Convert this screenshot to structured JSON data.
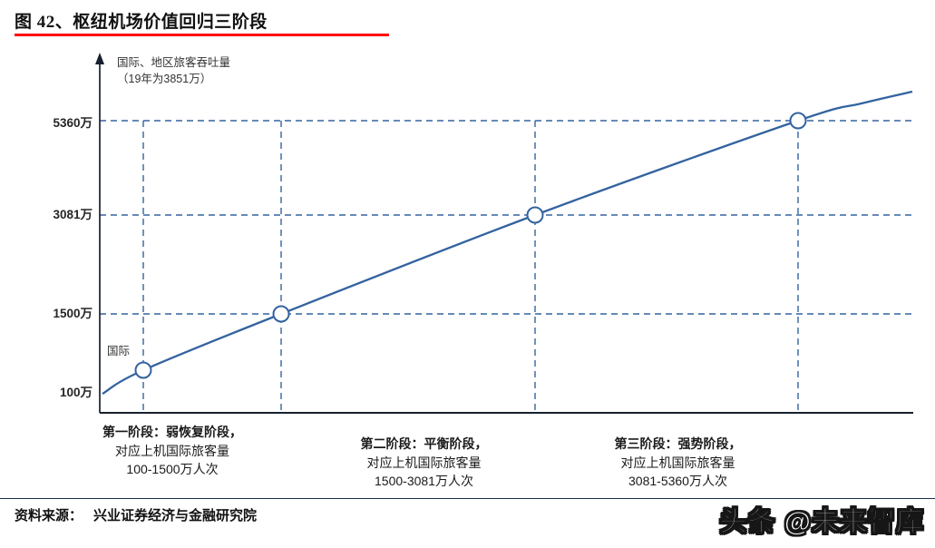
{
  "figure": {
    "title": "图 42、枢纽机场价值回归三阶段",
    "source_label": "资料来源：",
    "source_text": "兴业证券经济与金融研究院",
    "watermark": "头条 @未来智库"
  },
  "chart_data": {
    "type": "line",
    "title": "枢纽机场价值回归三阶段",
    "y_axis_title_line1": "国际、地区旅客吞吐量",
    "y_axis_title_line2": "（19年为3851万）",
    "y_unit": "万人次",
    "y_ticks": [
      {
        "label": "5360万",
        "value": 5360
      },
      {
        "label": "3081万",
        "value": 3081
      },
      {
        "label": "1500万",
        "value": 1500
      },
      {
        "label": "100万",
        "value": 100
      }
    ],
    "series": [
      {
        "name": "国际、地区旅客吞吐量",
        "annotation": "国际",
        "curve_range_approx": [
          100,
          6000
        ],
        "markers": [
          {
            "approx_value": 400,
            "label": "国际"
          },
          {
            "approx_value": 1500
          },
          {
            "approx_value": 3081
          },
          {
            "approx_value": 5360
          }
        ]
      }
    ],
    "gridlines": {
      "horizontal_dashed_values": [
        5360,
        3081,
        1500
      ],
      "vertical_dashed_at_markers": true
    },
    "line_color": "#33639f",
    "axis_color": "#17202e",
    "stages": [
      {
        "title": "第一阶段：弱恢复阶段，",
        "desc1": "对应上机国际旅客量",
        "desc2": "100-1500万人次"
      },
      {
        "title": "第二阶段：平衡阶段，",
        "desc1": "对应上机国际旅客量",
        "desc2": "1500-3081万人次"
      },
      {
        "title": "第三阶段：强势阶段，",
        "desc1": "对应上机国际旅客量",
        "desc2": "3081-5360万人次"
      }
    ]
  }
}
